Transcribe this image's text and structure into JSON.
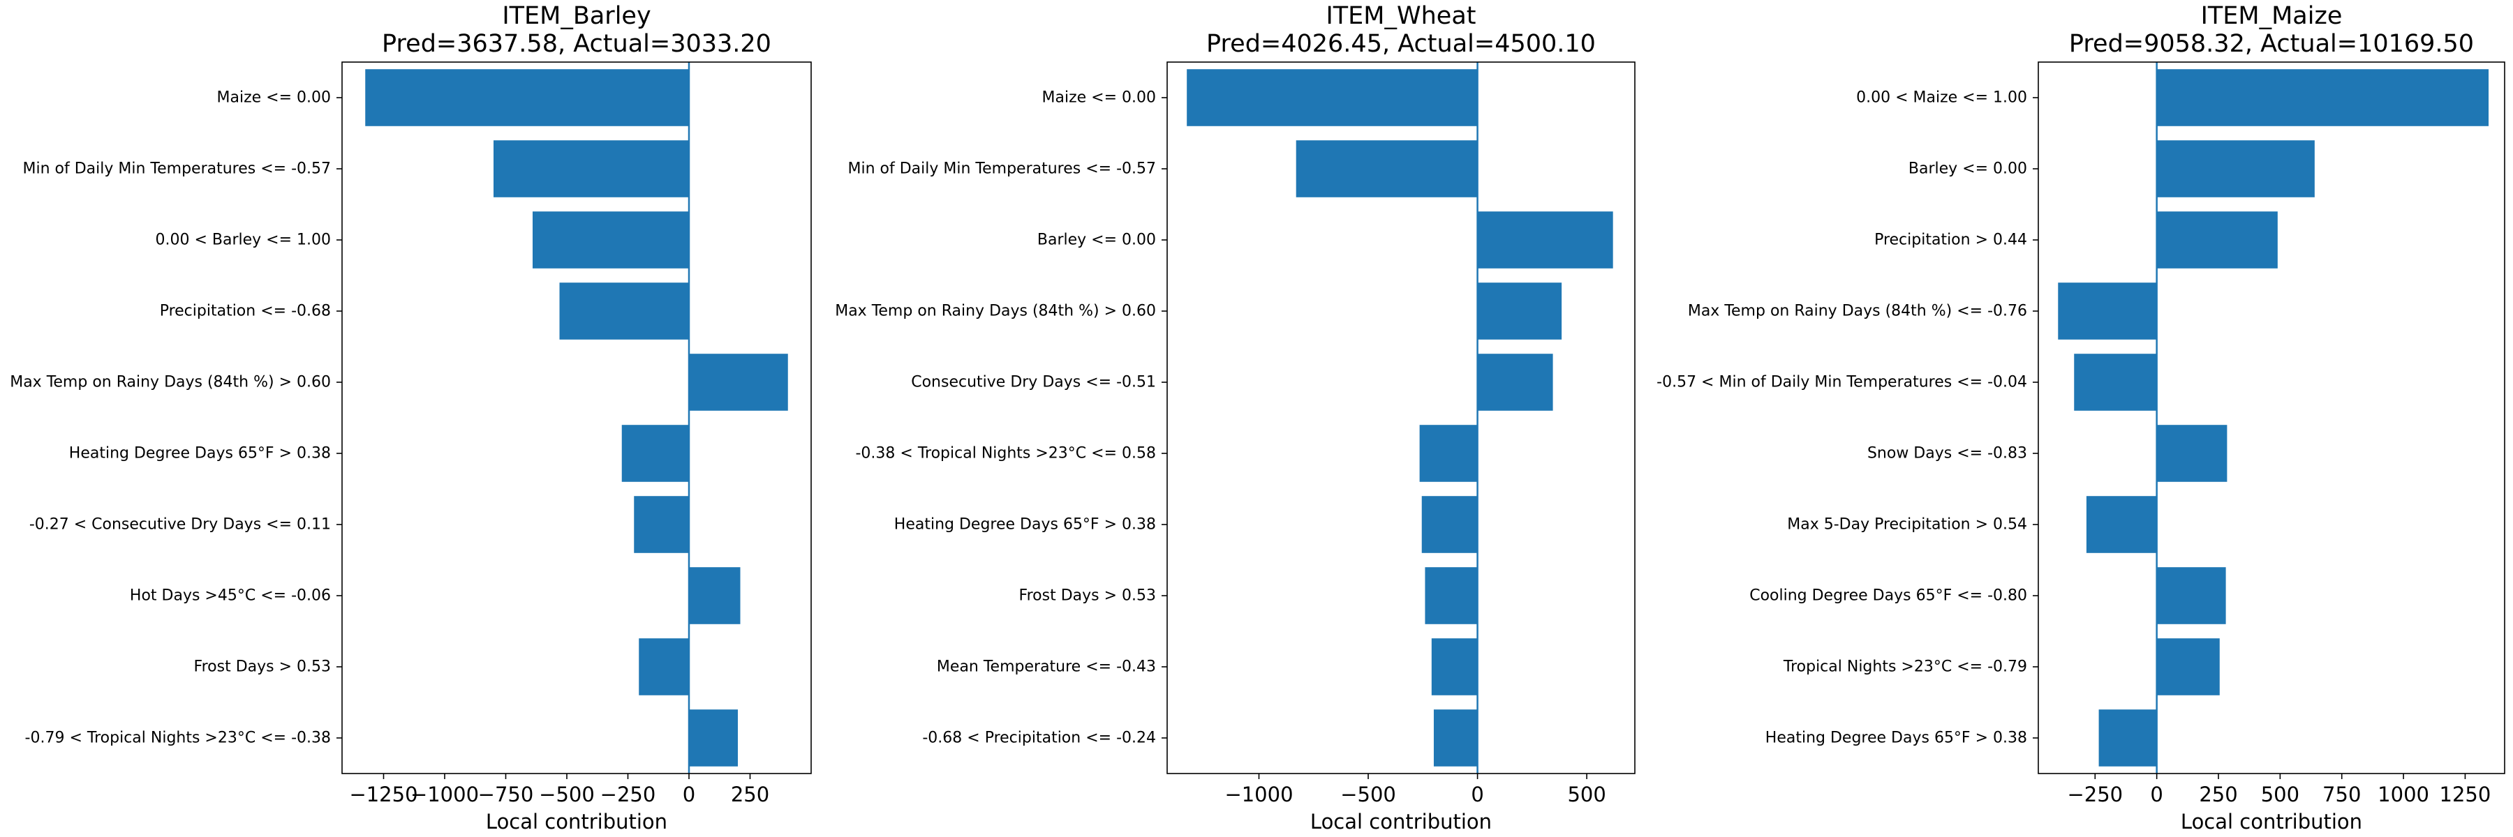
{
  "bar_color": "#1f77b4",
  "zero_line_color": "#1f77b4",
  "chart_data": [
    {
      "type": "bar",
      "orientation": "horizontal",
      "title": "ITEM_Barley",
      "subtitle": "Pred=3637.58, Actual=3033.20",
      "xlabel": "Local contribution",
      "ylabel": "",
      "xlim": [
        -1420,
        500
      ],
      "xticks": [
        -1250,
        -1000,
        -750,
        -500,
        -250,
        0,
        250
      ],
      "xtick_labels": [
        "−1250",
        "−1000",
        "−750",
        "−500",
        "−250",
        "0",
        "250"
      ],
      "categories": [
        "Maize <= 0.00",
        "Min of Daily Min Temperatures <= -0.57",
        "0.00 < Barley <= 1.00",
        "Precipitation <= -0.68",
        "Max Temp on Rainy Days (84th %) > 0.60",
        "Heating Degree Days 65°F > 0.38",
        "-0.27 < Consecutive Dry Days <= 0.11",
        "Hot Days >45°C <= -0.06",
        "Frost Days > 0.53",
        "-0.79 < Tropical Nights >23°C <= -0.38"
      ],
      "values": [
        -1325,
        -800,
        -640,
        -530,
        405,
        -275,
        -225,
        210,
        -205,
        200
      ],
      "grid": false
    },
    {
      "type": "bar",
      "orientation": "horizontal",
      "title": "ITEM_Wheat",
      "subtitle": "Pred=4026.45, Actual=4500.10",
      "xlabel": "Local contribution",
      "ylabel": "",
      "xlim": [
        -1420,
        720
      ],
      "xticks": [
        -1000,
        -500,
        0,
        500
      ],
      "xtick_labels": [
        "−1000",
        "−500",
        "0",
        "500"
      ],
      "categories": [
        "Maize <= 0.00",
        "Min of Daily Min Temperatures <= -0.57",
        "Barley <= 0.00",
        "Max Temp on Rainy Days (84th %) > 0.60",
        "Consecutive Dry Days <= -0.51",
        "-0.38 < Tropical Nights >23°C <= 0.58",
        "Heating Degree Days 65°F > 0.38",
        "Frost Days > 0.53",
        "Mean Temperature <= -0.43",
        "-0.68 < Precipitation <= -0.24"
      ],
      "values": [
        -1330,
        -830,
        620,
        385,
        345,
        -265,
        -255,
        -240,
        -210,
        -200
      ],
      "grid": false
    },
    {
      "type": "bar",
      "orientation": "horizontal",
      "title": "ITEM_Maize",
      "subtitle": "Pred=9058.32, Actual=10169.50",
      "xlabel": "Local contribution",
      "ylabel": "",
      "xlim": [
        -480,
        1410
      ],
      "xticks": [
        -250,
        0,
        250,
        500,
        750,
        1000,
        1250
      ],
      "xtick_labels": [
        "−250",
        "0",
        "250",
        "500",
        "750",
        "1000",
        "1250"
      ],
      "categories": [
        "0.00 < Maize <= 1.00",
        "Barley <= 0.00",
        "Precipitation > 0.44",
        "Max Temp on Rainy Days (84th %) <= -0.76",
        "-0.57 < Min of Daily Min Temperatures <= -0.04",
        "Snow Days <= -0.83",
        "Max 5-Day Precipitation > 0.54",
        "Cooling Degree Days 65°F <= -0.80",
        "Tropical Nights >23°C <= -0.79",
        "Heating Degree Days 65°F > 0.38"
      ],
      "values": [
        1345,
        640,
        490,
        -400,
        -335,
        285,
        -285,
        280,
        255,
        -235
      ],
      "grid": false
    }
  ]
}
